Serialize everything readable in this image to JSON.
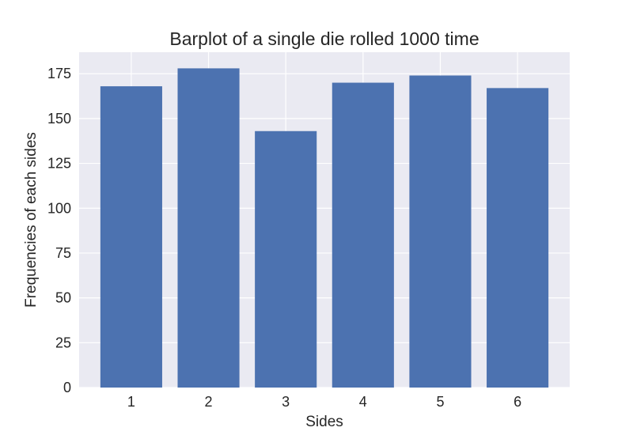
{
  "chart_data": {
    "type": "bar",
    "title": "Barplot of a single die rolled 1000 time",
    "xlabel": "Sides",
    "ylabel": "Frequencies of each sides",
    "categories": [
      "1",
      "2",
      "3",
      "4",
      "5",
      "6"
    ],
    "values": [
      168,
      178,
      143,
      170,
      174,
      167
    ],
    "ylim": [
      0,
      187
    ],
    "yticks": [
      "0",
      "25",
      "50",
      "75",
      "100",
      "125",
      "150",
      "175"
    ],
    "grid": true,
    "colors": {
      "bar": "#4c72b0",
      "plot_background": "#eaeaf2",
      "grid": "#ffffff",
      "text": "#262626"
    }
  }
}
